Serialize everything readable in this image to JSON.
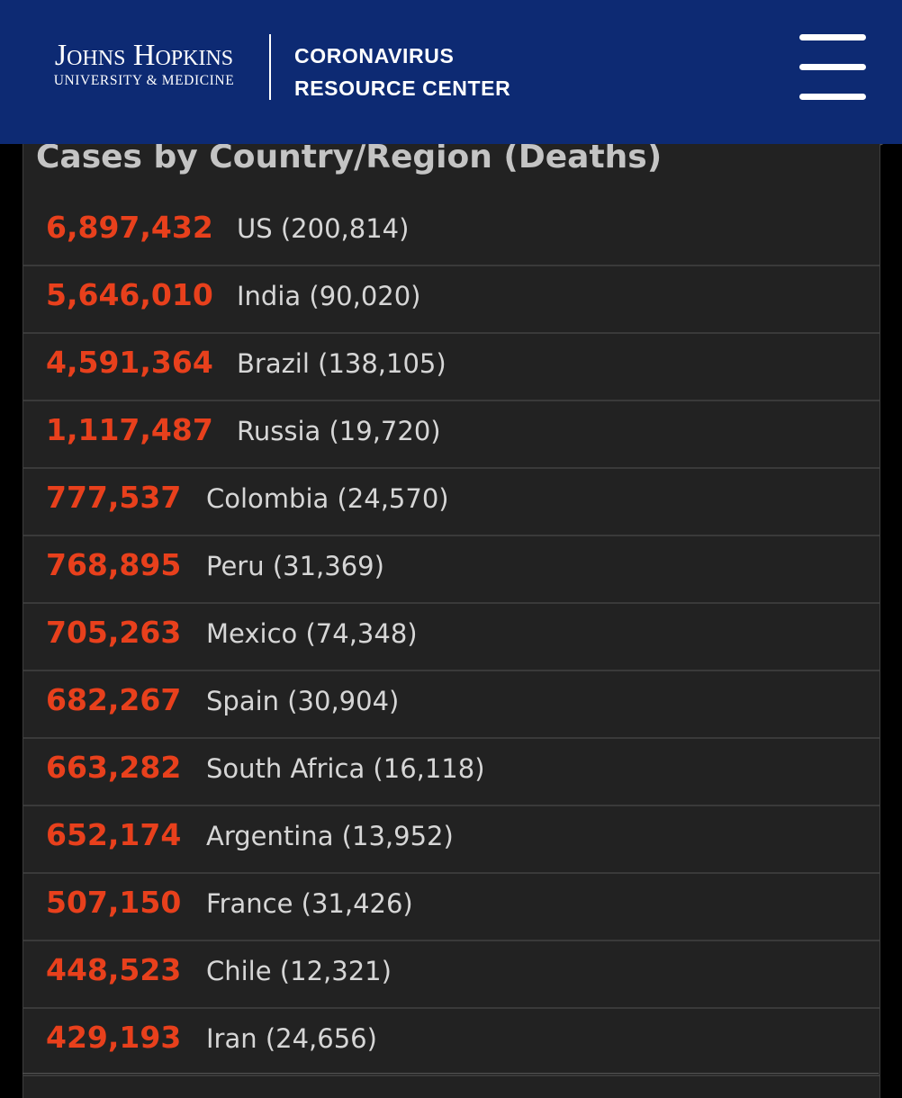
{
  "header": {
    "logo_line1": "Johns Hopkins",
    "logo_line2": "UNIVERSITY & MEDICINE",
    "site_title_line1": "CORONAVIRUS",
    "site_title_line2": "RESOURCE CENTER",
    "menu_icon": "hamburger-menu-icon",
    "background_color": "#0d2a73"
  },
  "panel": {
    "title": "Cases by Country/Region (Deaths)",
    "cases_color": "#e8401c",
    "rows": [
      {
        "cases": "6,897,432",
        "country": "US (200,814)"
      },
      {
        "cases": "5,646,010",
        "country": "India (90,020)"
      },
      {
        "cases": "4,591,364",
        "country": "Brazil (138,105)"
      },
      {
        "cases": "1,117,487",
        "country": "Russia (19,720)"
      },
      {
        "cases": "777,537",
        "country": "Colombia (24,570)"
      },
      {
        "cases": "768,895",
        "country": "Peru (31,369)"
      },
      {
        "cases": "705,263",
        "country": "Mexico (74,348)"
      },
      {
        "cases": "682,267",
        "country": "Spain (30,904)"
      },
      {
        "cases": "663,282",
        "country": "South Africa (16,118)"
      },
      {
        "cases": "652,174",
        "country": "Argentina (13,952)"
      },
      {
        "cases": "507,150",
        "country": "France (31,426)"
      },
      {
        "cases": "448,523",
        "country": "Chile (12,321)"
      },
      {
        "cases": "429,193",
        "country": "Iran (24,656)"
      }
    ]
  }
}
